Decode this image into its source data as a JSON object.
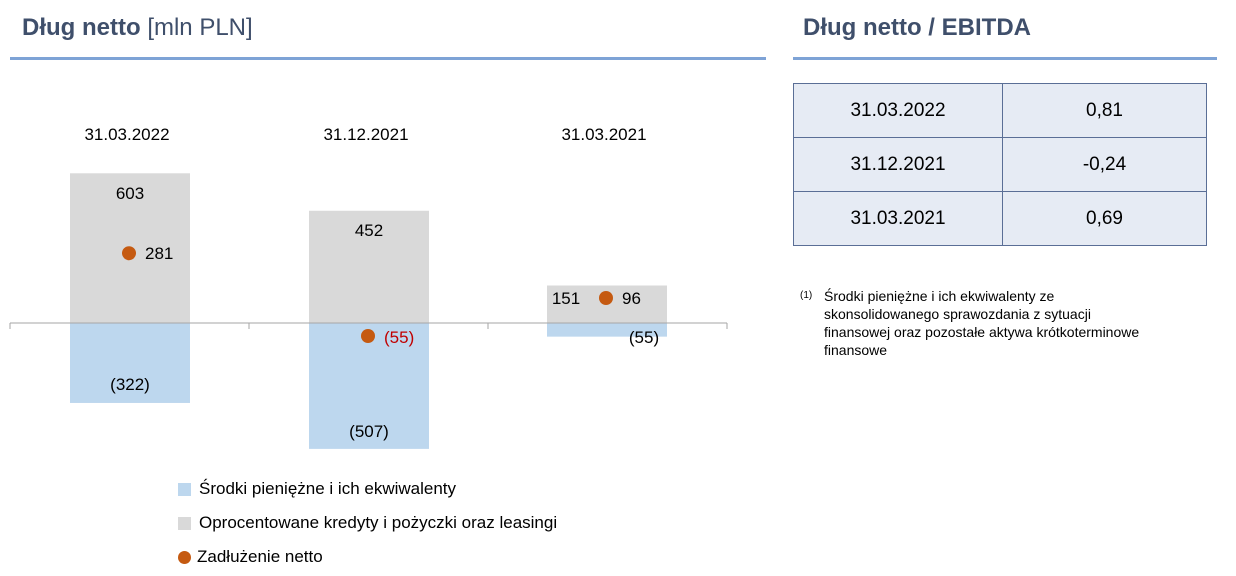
{
  "left_title": {
    "main": "Dług netto",
    "unit": "[mln PLN]"
  },
  "right_title": "Dług netto / EBITDA",
  "chart_data": {
    "type": "bar",
    "categories": [
      "31.03.2022",
      "31.12.2021",
      "31.03.2021"
    ],
    "series": [
      {
        "name": "Środki pieniężne i ich ekwiwalenty",
        "values": [
          -322,
          -507,
          -55
        ],
        "labels": [
          "(322)",
          "(507)",
          "(55)"
        ]
      },
      {
        "name": "Oprocentowane kredyty i pożyczki oraz leasingi",
        "values": [
          603,
          452,
          151
        ],
        "labels": [
          "603",
          "452",
          "151"
        ]
      },
      {
        "name": "Zadłużenie netto",
        "values": [
          281,
          -55,
          96
        ],
        "labels": [
          "281",
          "(55)",
          "96"
        ]
      }
    ],
    "colors": {
      "cash": "#bdd7ee",
      "loans": "#d9d9d9",
      "net": "#c55a11",
      "negative_label": "#c00000"
    }
  },
  "ratio_table": {
    "rows": [
      {
        "date": "31.03.2022",
        "value": "0,81"
      },
      {
        "date": "31.12.2021",
        "value": "-0,24"
      },
      {
        "date": "31.03.2021",
        "value": "0,69"
      }
    ]
  },
  "footnote": {
    "marker": "(1)",
    "text": "Środki pieniężne i ich ekwiwalenty ze skonsolidowanego sprawozdania z sytuacji finansowej oraz pozostałe aktywa krótkoterminowe finansowe"
  }
}
